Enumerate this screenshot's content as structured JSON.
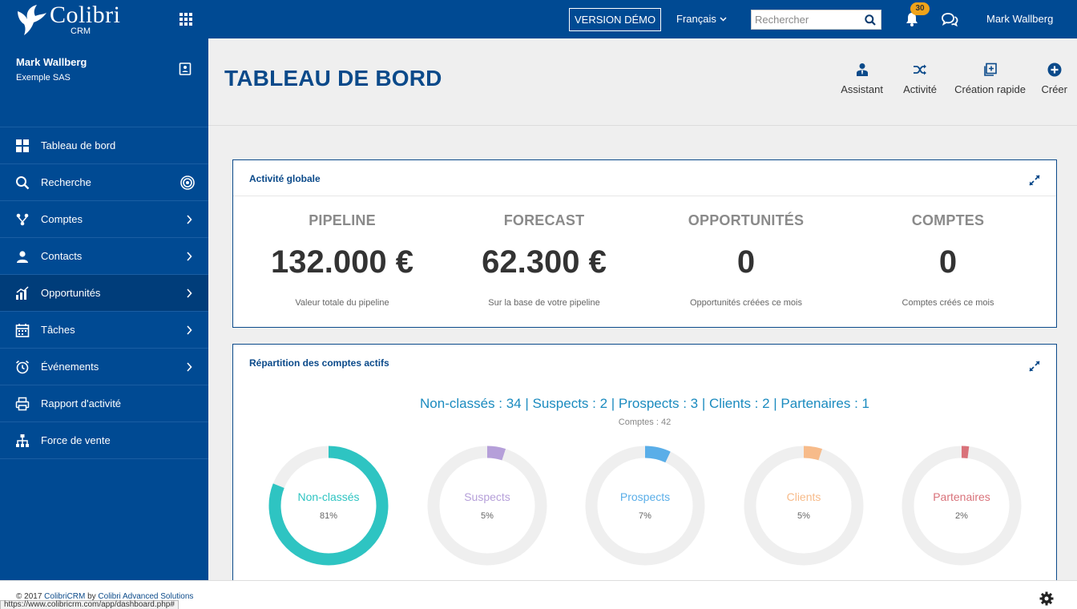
{
  "brand": {
    "name": "Colibri",
    "sub": "CRM"
  },
  "topbar": {
    "demo_label": "VERSION DÉMO",
    "language": "Français",
    "search_placeholder": "Rechercher",
    "notifications_count": "30",
    "user": "Mark Wallberg"
  },
  "sidebar": {
    "profile": {
      "name": "Mark Wallberg",
      "company": "Exemple SAS"
    },
    "items": [
      {
        "label": "Tableau de bord",
        "icon": "grid-icon"
      },
      {
        "label": "Recherche",
        "icon": "search-icon"
      },
      {
        "label": "Comptes",
        "icon": "sitemap-icon"
      },
      {
        "label": "Contacts",
        "icon": "contact-icon"
      },
      {
        "label": "Opportunités",
        "icon": "chart-icon"
      },
      {
        "label": "Tâches",
        "icon": "calendar-icon"
      },
      {
        "label": "Événements",
        "icon": "alarm-clock-icon"
      },
      {
        "label": "Rapport d'activité",
        "icon": "printer-icon"
      },
      {
        "label": "Force de vente",
        "icon": "org-chart-icon"
      }
    ]
  },
  "header": {
    "title": "TABLEAU DE BORD",
    "actions": [
      {
        "label": "Assistant",
        "icon": "user-tie-icon"
      },
      {
        "label": "Activité",
        "icon": "shuffle-icon"
      },
      {
        "label": "Création rapide",
        "icon": "quick-add-icon"
      },
      {
        "label": "Créer",
        "icon": "plus-circle-icon"
      }
    ]
  },
  "activity": {
    "title": "Activité globale",
    "stats": [
      {
        "label": "PIPELINE",
        "value": "132.000 €",
        "sub": "Valeur totale du pipeline"
      },
      {
        "label": "FORECAST",
        "value": "62.300 €",
        "sub": "Sur la base de votre pipeline"
      },
      {
        "label": "OPPORTUNITÉS",
        "value": "0",
        "sub": "Opportunités créées ce mois"
      },
      {
        "label": "COMPTES",
        "value": "0",
        "sub": "Comptes créés ce mois"
      }
    ]
  },
  "accounts": {
    "title": "Répartition des comptes actifs",
    "summary": "Non-classés : 34 | Suspects : 2 | Prospects : 3 | Clients : 2 | Partenaires : 1",
    "total": "Comptes : 42",
    "segments": [
      {
        "label": "Non-classés",
        "pct_label": "81%",
        "pct": 81,
        "color": "#2ec4c2"
      },
      {
        "label": "Suspects",
        "pct_label": "5%",
        "pct": 5,
        "color": "#b59fd9"
      },
      {
        "label": "Prospects",
        "pct_label": "7%",
        "pct": 7,
        "color": "#5aaee8"
      },
      {
        "label": "Clients",
        "pct_label": "5%",
        "pct": 5,
        "color": "#f7bb8a"
      },
      {
        "label": "Partenaires",
        "pct_label": "2%",
        "pct": 2,
        "color": "#d9727a"
      }
    ]
  },
  "footer": {
    "copyright_prefix": "© 2017 ",
    "copyright_link1": "ColibriCRM",
    "copyright_mid": " by ",
    "copyright_link2": "Colibri Advanced Solutions",
    "status_url": "https://www.colibricrm.com/app/dashboard.php#"
  },
  "colors": {
    "primary": "#004a93",
    "accent": "#f0a31a",
    "title": "#0b4a8a"
  }
}
